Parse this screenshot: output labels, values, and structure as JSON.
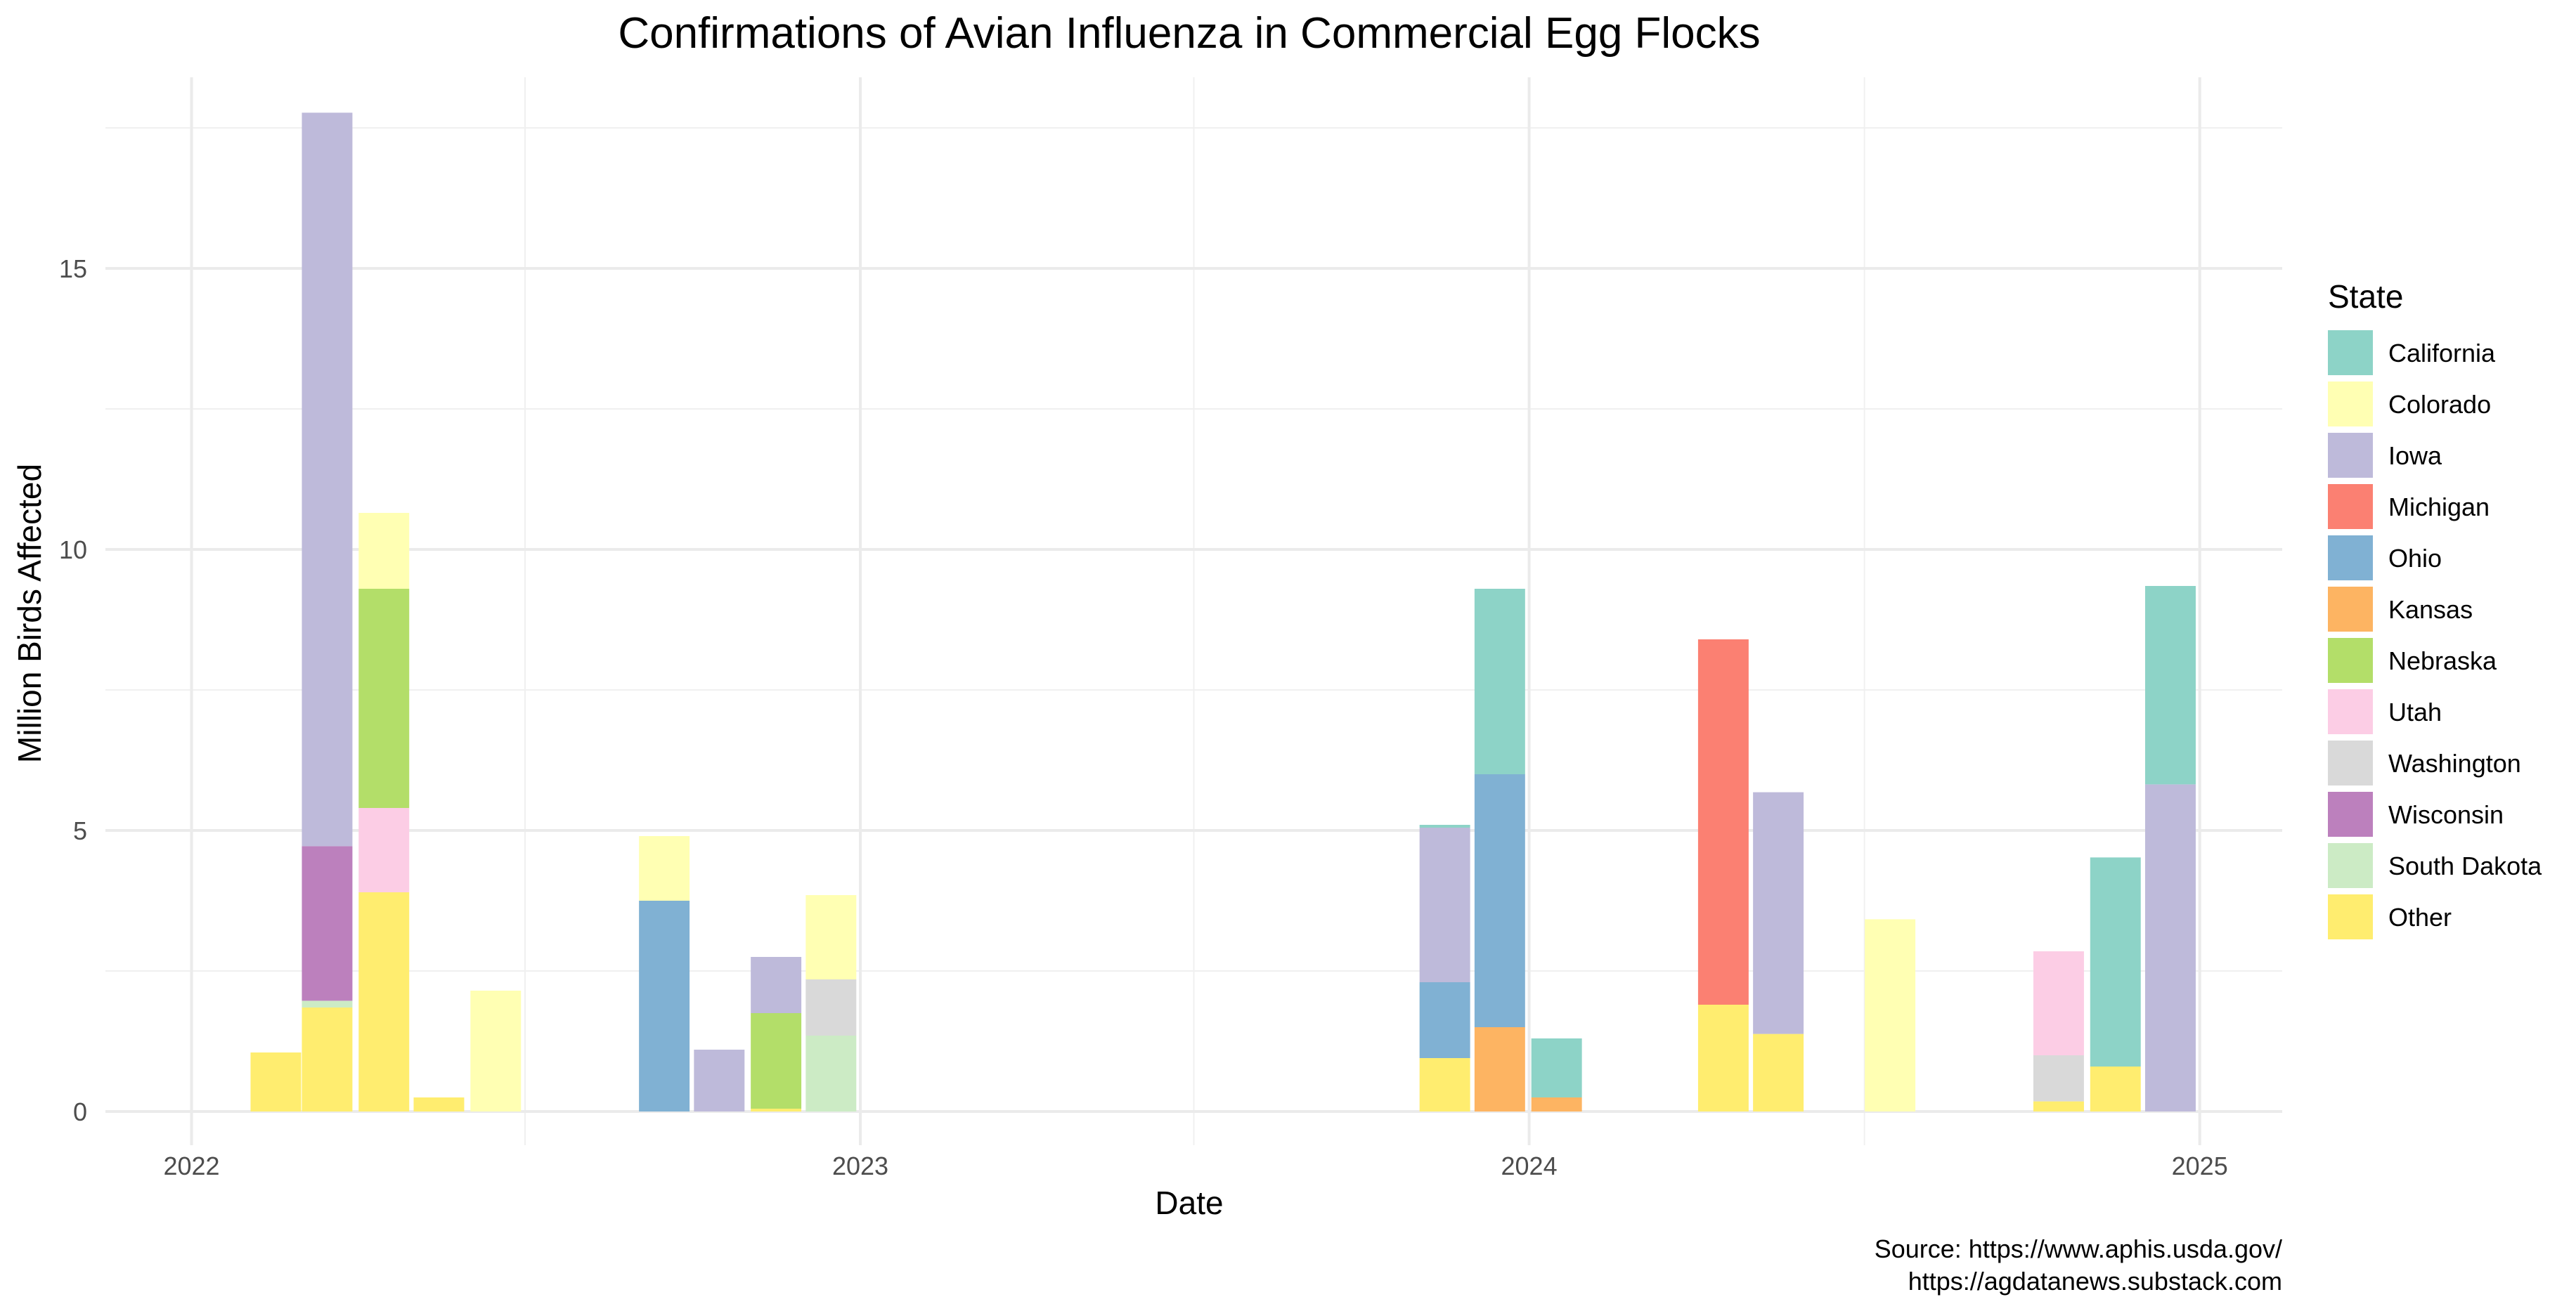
{
  "chart_data": {
    "type": "bar",
    "stacked": true,
    "title": "Confirmations of Avian Influenza in Commercial Egg Flocks",
    "xlabel": "Date",
    "ylabel": "Million Birds Affected",
    "x_axis": {
      "type": "date",
      "range": [
        "2021-11-15",
        "2025-02-15"
      ],
      "ticks": [
        "2022",
        "2023",
        "2024",
        "2025"
      ]
    },
    "y_axis": {
      "range": [
        -0.6,
        18.4
      ],
      "ticks": [
        "0",
        "5",
        "10",
        "15"
      ]
    },
    "grid": true,
    "legend": {
      "title": "State",
      "position": "right"
    },
    "series": [
      {
        "name": "California",
        "color": "#8DD3C7"
      },
      {
        "name": "Colorado",
        "color": "#FFFFB3"
      },
      {
        "name": "Iowa",
        "color": "#BEBADA"
      },
      {
        "name": "Michigan",
        "color": "#FB8072"
      },
      {
        "name": "Ohio",
        "color": "#80B1D3"
      },
      {
        "name": "Kansas",
        "color": "#FDB462"
      },
      {
        "name": "Nebraska",
        "color": "#B3DE69"
      },
      {
        "name": "Utah",
        "color": "#FCCDE5"
      },
      {
        "name": "Washington",
        "color": "#D9D9D9"
      },
      {
        "name": "Wisconsin",
        "color": "#BC80BD"
      },
      {
        "name": "South Dakota",
        "color": "#CCEBC5"
      },
      {
        "name": "Other",
        "color": "#FFED6F"
      }
    ],
    "bars": [
      {
        "month": "2022-02",
        "values": {
          "Other": 1.05
        }
      },
      {
        "month": "2022-03",
        "values": {
          "Other": 1.85,
          "South Dakota": 0.12,
          "Wisconsin": 2.75,
          "Iowa": 13.05
        }
      },
      {
        "month": "2022-04",
        "values": {
          "Other": 3.9,
          "Utah": 1.5,
          "Nebraska": 3.9,
          "Colorado": 1.35
        }
      },
      {
        "month": "2022-05",
        "values": {
          "Other": 0.25
        }
      },
      {
        "month": "2022-06",
        "values": {
          "Colorado": 2.15
        }
      },
      {
        "month": "2022-09",
        "values": {
          "Ohio": 3.75,
          "Colorado": 1.15
        }
      },
      {
        "month": "2022-10",
        "values": {
          "Iowa": 1.1
        }
      },
      {
        "month": "2022-11",
        "values": {
          "Other": 0.05,
          "Nebraska": 1.7,
          "Iowa": 1.0
        }
      },
      {
        "month": "2022-12",
        "values": {
          "South Dakota": 1.35,
          "Washington": 1.0,
          "Colorado": 1.5
        }
      },
      {
        "month": "2023-11",
        "values": {
          "Other": 0.95,
          "Ohio": 1.35,
          "Iowa": 2.75,
          "California": 0.05
        }
      },
      {
        "month": "2023-12",
        "values": {
          "Kansas": 1.5,
          "Ohio": 4.5,
          "California": 3.3
        }
      },
      {
        "month": "2024-01",
        "values": {
          "Kansas": 0.25,
          "California": 1.05
        }
      },
      {
        "month": "2024-04",
        "values": {
          "Other": 1.9,
          "Michigan": 6.5
        }
      },
      {
        "month": "2024-05",
        "values": {
          "Other": 1.38,
          "Iowa": 4.3
        }
      },
      {
        "month": "2024-07",
        "values": {
          "Colorado": 3.42
        }
      },
      {
        "month": "2024-10",
        "values": {
          "Other": 0.18,
          "Washington": 0.82,
          "Utah": 1.85
        }
      },
      {
        "month": "2024-11",
        "values": {
          "Other": 0.8,
          "California": 3.72
        }
      },
      {
        "month": "2024-12",
        "values": {
          "Iowa": 5.82,
          "California": 3.53
        }
      }
    ],
    "caption": [
      "Source: https://www.aphis.usda.gov/",
      "https://agdatanews.substack.com"
    ]
  }
}
